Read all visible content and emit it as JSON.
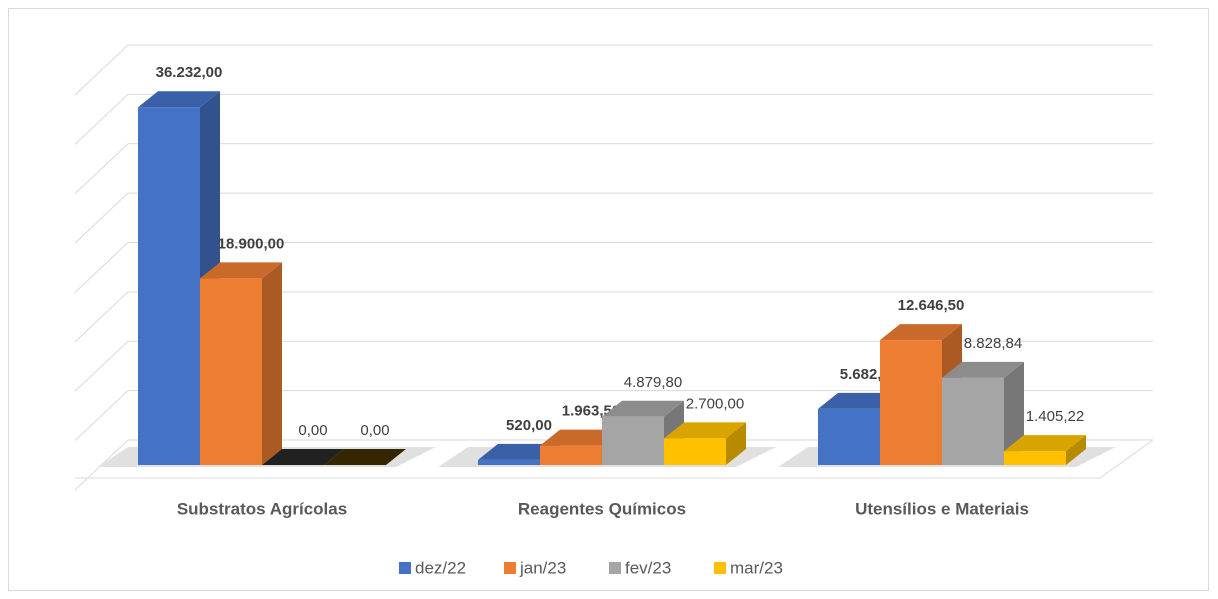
{
  "chart_data": {
    "type": "bar3d",
    "categories": [
      "Substratos Agrícolas",
      "Reagentes Químicos",
      "Utensílios e Materiais"
    ],
    "series": [
      {
        "name": "dez/22",
        "color": "#4472c4",
        "values": [
          36232,
          520,
          5682.4
        ],
        "value_labels": [
          "36.232,00",
          "520,00",
          "5.682,40"
        ]
      },
      {
        "name": "jan/23",
        "color": "#ed7d31",
        "values": [
          18900,
          1963.5,
          12646.5
        ],
        "value_labels": [
          "18.900,00",
          "1.963,50",
          "12.646,50"
        ]
      },
      {
        "name": "fev/23",
        "color": "#a5a5a5",
        "values": [
          0,
          4879.8,
          8828.84
        ],
        "value_labels": [
          "0,00",
          "4.879,80",
          "8.828,84"
        ]
      },
      {
        "name": "mar/23",
        "color": "#ffc000",
        "values": [
          0,
          2700,
          1405.22
        ],
        "value_labels": [
          "0,00",
          "2.700,00",
          "1.405,22"
        ]
      }
    ],
    "ylim": [
      0,
      40000
    ],
    "yticks": [
      0,
      5000,
      10000,
      15000,
      20000,
      25000,
      30000,
      35000,
      40000
    ],
    "grid": true,
    "legend": "bottom"
  }
}
